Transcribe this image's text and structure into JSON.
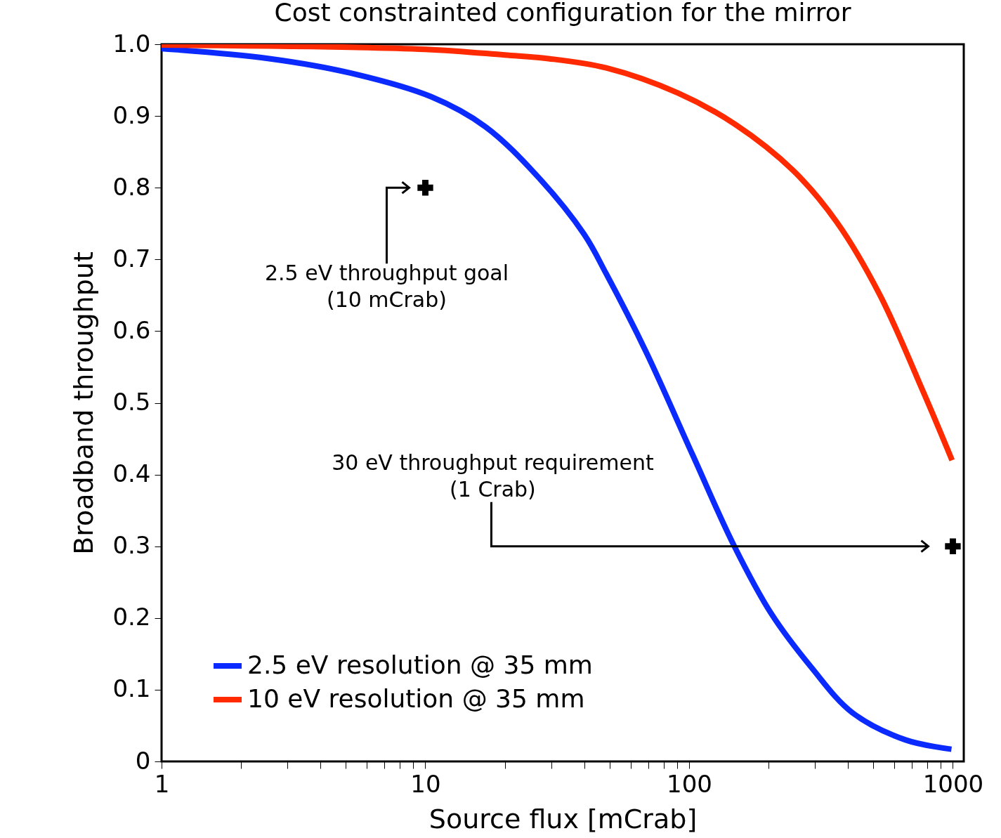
{
  "chart_data": {
    "type": "line",
    "title": "Cost constrainted configuration for the mirror",
    "xlabel": "Source flux [mCrab]",
    "ylabel": "Broadband throughput",
    "log": "x",
    "xlim": [
      1,
      1100
    ],
    "ylim": [
      0,
      1
    ],
    "xticks": [
      1,
      {
        "value": 2,
        "label": null
      },
      {
        "value": 3,
        "label": null
      },
      {
        "value": 4,
        "label": null
      },
      {
        "value": 5,
        "label": null
      },
      {
        "value": 6,
        "label": null
      },
      {
        "value": 7,
        "label": null
      },
      {
        "value": 8,
        "label": null
      },
      {
        "value": 9,
        "label": null
      },
      10,
      {
        "value": 20,
        "label": null
      },
      {
        "value": 30,
        "label": null
      },
      {
        "value": 40,
        "label": null
      },
      {
        "value": 50,
        "label": null
      },
      {
        "value": 60,
        "label": null
      },
      {
        "value": 70,
        "label": null
      },
      {
        "value": 80,
        "label": null
      },
      {
        "value": 90,
        "label": null
      },
      100,
      {
        "value": 200,
        "label": null
      },
      {
        "value": 300,
        "label": null
      },
      {
        "value": 400,
        "label": null
      },
      {
        "value": 500,
        "label": null
      },
      {
        "value": 600,
        "label": null
      },
      {
        "value": 700,
        "label": null
      },
      {
        "value": 800,
        "label": null
      },
      {
        "value": 900,
        "label": null
      },
      1000
    ],
    "yticks": [
      0,
      0.1,
      0.2,
      0.3,
      0.4,
      0.5,
      0.6,
      0.7,
      0.8,
      0.9,
      {
        "value": 1.0,
        "label": "1.0"
      }
    ],
    "grid": false,
    "legend": "bottom left",
    "line_style": "solid",
    "marker": "none",
    "series": [
      {
        "name": "2.5 eV resolution @ 35 mm",
        "color": "#0a2aff",
        "x": [
          1,
          2.56,
          5.19,
          10.5,
          16.9,
          26.9,
          40,
          48.5,
          68.5,
          103,
          148,
          205,
          291,
          416,
          662,
          988
        ],
        "values": [
          0.994,
          0.98,
          0.96,
          0.927,
          0.885,
          0.814,
          0.735,
          0.68,
          0.572,
          0.428,
          0.301,
          0.206,
          0.131,
          0.068,
          0.03,
          0.017
        ]
      },
      {
        "name": "10 eV resolution @ 35 mm",
        "color": "#ff2a00",
        "x": [
          1,
          10,
          20,
          29.3,
          48.5,
          90.7,
          150,
          248,
          363,
          528,
          773,
          993
        ],
        "values": [
          0.999,
          0.993,
          0.985,
          0.98,
          0.967,
          0.932,
          0.888,
          0.824,
          0.752,
          0.651,
          0.515,
          0.42
        ]
      },
      {
        "type": "scatter",
        "color": "#000000",
        "marker": "cross",
        "x": [
          10,
          1000
        ],
        "values": [
          0.8,
          0.3
        ]
      }
    ],
    "annotations": [
      "2.5 eV throughput goal\n(10 mCrab)",
      "30 eV throughput requirement\n(1 Crab)"
    ]
  }
}
